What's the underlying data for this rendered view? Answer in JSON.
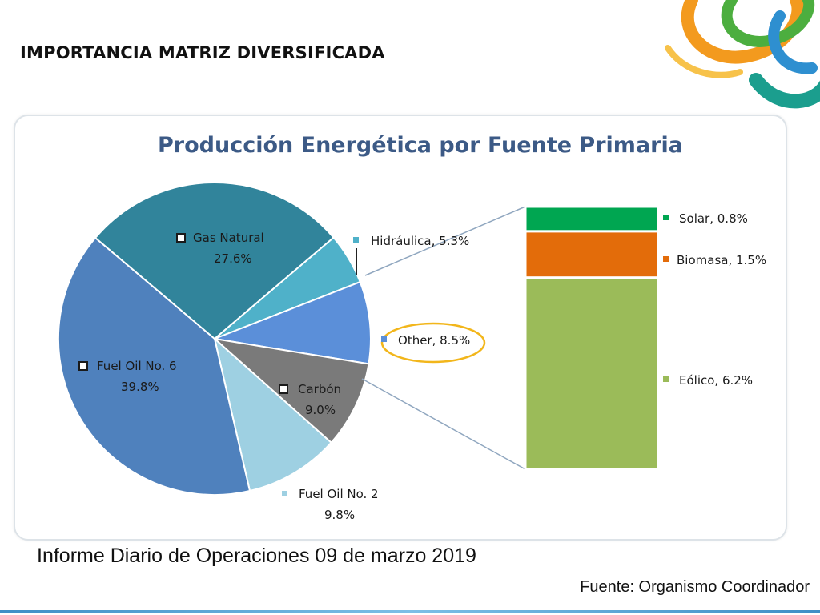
{
  "slide": {
    "title": "IMPORTANCIA MATRIZ DIVERSIFICADA",
    "report": "Informe Diario de Operaciones 09 de marzo 2019",
    "source": "Fuente: Organismo Coordinador"
  },
  "colors": {
    "accent_title": "#3c5a86",
    "highlight_ellipse": "#f2b61b",
    "deco_orange": "#f39a1e",
    "deco_green": "#4cae3f",
    "deco_blue": "#2e8fd0",
    "deco_teal": "#1b9e8e"
  },
  "chart_data": {
    "type": "pie",
    "title": "Producción Energética por Fuente Primaria",
    "unit": "%",
    "slices": [
      {
        "key": "hidraulica",
        "label": "Hidráulica, 5.3%",
        "value": 5.3,
        "color": "#4fb1c9"
      },
      {
        "key": "other",
        "label": "Other, 8.5%",
        "value": 8.5,
        "color": "#5b8fd9",
        "highlighted": true
      },
      {
        "key": "carbon",
        "label": "Carbón",
        "value_label": "9.0%",
        "value": 9.0,
        "color": "#7a7a7a"
      },
      {
        "key": "fuel_oil_2",
        "label": "Fuel Oil No. 2",
        "value_label": "9.8%",
        "value": 9.8,
        "color": "#9ed0e2"
      },
      {
        "key": "fuel_oil_6",
        "label": "Fuel Oil No. 6",
        "value_label": "39.8%",
        "value": 39.8,
        "color": "#4f81bd"
      },
      {
        "key": "gas_natural",
        "label": "Gas Natural",
        "value_label": "27.6%",
        "value": 27.6,
        "color": "#31849b"
      }
    ],
    "breakdown": {
      "of": "other",
      "type": "stacked-bar",
      "segments": [
        {
          "key": "solar",
          "label": "Solar, 0.8%",
          "value": 0.8,
          "color": "#00a651"
        },
        {
          "key": "biomasa",
          "label": "Biomasa, 1.5%",
          "value": 1.5,
          "color": "#e36c0a"
        },
        {
          "key": "eolico",
          "label": "Eólico, 6.2%",
          "value": 6.2,
          "color": "#9bbb59"
        }
      ]
    }
  }
}
